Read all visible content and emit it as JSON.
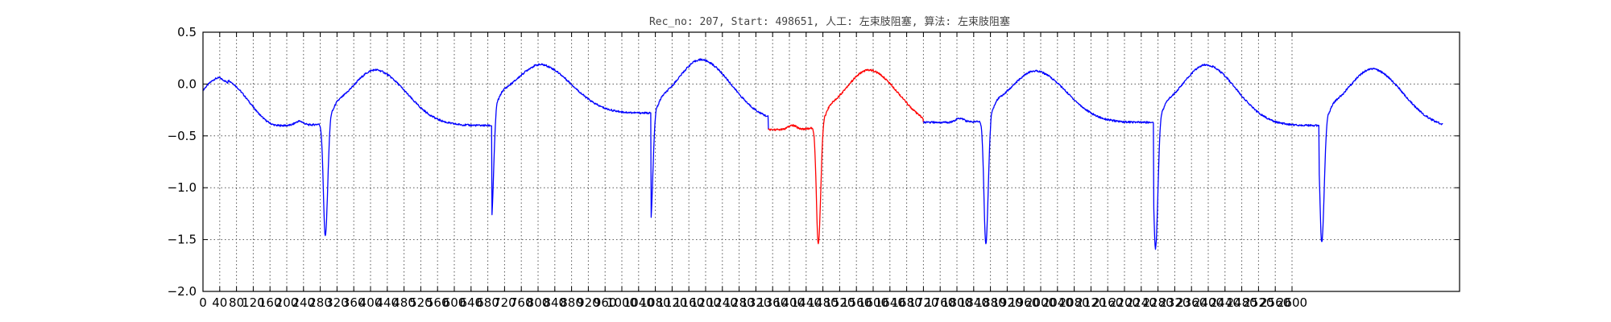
{
  "chart_data": {
    "type": "line",
    "title": "Rec_no: 207, Start: 498651, 人工: 左束肢阻塞, 算法: 左束肢阻塞",
    "xlabel": "",
    "ylabel": "",
    "xlim": [
      0,
      3000
    ],
    "ylim": [
      -2.0,
      0.5
    ],
    "grid": true,
    "y_ticks": [
      {
        "value": 0.5,
        "label": "0.5"
      },
      {
        "value": 0.0,
        "label": "0.0"
      },
      {
        "value": -0.5,
        "label": "−0.5"
      },
      {
        "value": -1.0,
        "label": "−1.0"
      },
      {
        "value": -1.5,
        "label": "−1.5"
      },
      {
        "value": -2.0,
        "label": "−2.0"
      }
    ],
    "x_ticks": [
      {
        "value": 0,
        "label": "0"
      },
      {
        "value": 40,
        "label": "40"
      },
      {
        "value": 80,
        "label": "80"
      },
      {
        "value": 120,
        "label": "120"
      },
      {
        "value": 160,
        "label": "160"
      },
      {
        "value": 200,
        "label": "200"
      },
      {
        "value": 240,
        "label": "240"
      },
      {
        "value": 280,
        "label": "280"
      },
      {
        "value": 320,
        "label": "320"
      },
      {
        "value": 360,
        "label": "360"
      },
      {
        "value": 400,
        "label": "400"
      },
      {
        "value": 440,
        "label": "440"
      },
      {
        "value": 480,
        "label": "480"
      },
      {
        "value": 520,
        "label": "520"
      },
      {
        "value": 560,
        "label": "560"
      },
      {
        "value": 600,
        "label": "600"
      },
      {
        "value": 640,
        "label": "640"
      },
      {
        "value": 680,
        "label": "680"
      },
      {
        "value": 720,
        "label": "720"
      },
      {
        "value": 760,
        "label": "760"
      },
      {
        "value": 800,
        "label": "800"
      },
      {
        "value": 840,
        "label": "840"
      },
      {
        "value": 880,
        "label": "880"
      },
      {
        "value": 920,
        "label": "920"
      },
      {
        "value": 960,
        "label": "960"
      },
      {
        "value": 1000,
        "label": "1000"
      },
      {
        "value": 1040,
        "label": "1040"
      },
      {
        "value": 1080,
        "label": "1080"
      },
      {
        "value": 1120,
        "label": "1120"
      },
      {
        "value": 1160,
        "label": "1160"
      },
      {
        "value": 1200,
        "label": "1200"
      },
      {
        "value": 1240,
        "label": "1240"
      },
      {
        "value": 1280,
        "label": "1280"
      },
      {
        "value": 1320,
        "label": "1320"
      },
      {
        "value": 1360,
        "label": "1360"
      },
      {
        "value": 1400,
        "label": "1400"
      },
      {
        "value": 1440,
        "label": "1440"
      },
      {
        "value": 1480,
        "label": "1480"
      },
      {
        "value": 1520,
        "label": "1520"
      },
      {
        "value": 1560,
        "label": "1560"
      },
      {
        "value": 1600,
        "label": "1600"
      },
      {
        "value": 1640,
        "label": "1640"
      },
      {
        "value": 1680,
        "label": "1680"
      },
      {
        "value": 1720,
        "label": "1720"
      },
      {
        "value": 1760,
        "label": "1760"
      },
      {
        "value": 1800,
        "label": "1800"
      },
      {
        "value": 1840,
        "label": "1840"
      },
      {
        "value": 1880,
        "label": "1880"
      },
      {
        "value": 1920,
        "label": "1920"
      },
      {
        "value": 1960,
        "label": "1960"
      },
      {
        "value": 2000,
        "label": "2000"
      },
      {
        "value": 2040,
        "label": "2040"
      },
      {
        "value": 2080,
        "label": "2080"
      },
      {
        "value": 2120,
        "label": "2120"
      },
      {
        "value": 2160,
        "label": "2160"
      },
      {
        "value": 2200,
        "label": "2200"
      },
      {
        "value": 2240,
        "label": "2240"
      },
      {
        "value": 2280,
        "label": "2280"
      },
      {
        "value": 2320,
        "label": "2320"
      },
      {
        "value": 2360,
        "label": "2360"
      },
      {
        "value": 2400,
        "label": "2400"
      },
      {
        "value": 2440,
        "label": "2440"
      },
      {
        "value": 2480,
        "label": "2480"
      },
      {
        "value": 2520,
        "label": "2520"
      },
      {
        "value": 2560,
        "label": "2560"
      },
      {
        "value": 2600,
        "label": "2600"
      }
    ],
    "beats": [
      {
        "r": 292,
        "r_val": -1.5,
        "t_val": 0.06,
        "base": -0.4,
        "p_val": -0.36,
        "start": 0,
        "end": 690,
        "color": "#0000ff"
      },
      {
        "r": 688,
        "r_val": -1.36,
        "t_val": 0.11,
        "base": -0.28,
        "p_val": -0.23,
        "start": 690,
        "end": 1070,
        "color": "#0000ff"
      },
      {
        "r": 1068,
        "r_val": -1.39,
        "t_val": 0.16,
        "base": -0.36,
        "p_val": -0.32,
        "start": 1070,
        "end": 1350,
        "color": "#0000ff"
      },
      {
        "r": 1469,
        "r_val": -1.58,
        "t_val": 0.06,
        "base": -0.44,
        "p_val": -0.4,
        "start": 1350,
        "end": 1720,
        "color": "#ff0000"
      },
      {
        "r": 1869,
        "r_val": -1.57,
        "t_val": 0.05,
        "base": -0.37,
        "p_val": -0.33,
        "start": 1720,
        "end": 2270,
        "color": "#0000ff"
      },
      {
        "r": 2274,
        "r_val": -1.62,
        "t_val": 0.11,
        "base": -0.4,
        "p_val": -0.35,
        "start": 2270,
        "end": 2665,
        "color": "#0000ff"
      },
      {
        "r": 2671,
        "r_val": -1.56,
        "t_val": 0.07,
        "base": -0.42,
        "p_val": -0.37,
        "start": 2665,
        "end": 2960,
        "color": "#0000ff"
      }
    ],
    "series": [
      {
        "color": "#0000ff",
        "x_range": [
          0,
          1350
        ]
      },
      {
        "color": "#ff0000",
        "x_range": [
          1350,
          1720
        ]
      },
      {
        "color": "#0000ff",
        "x_range": [
          1720,
          2960
        ]
      }
    ]
  }
}
